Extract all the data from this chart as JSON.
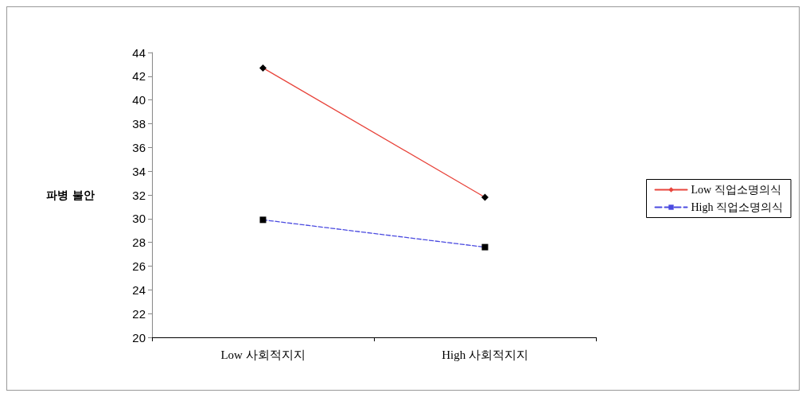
{
  "chart_data": {
    "type": "line",
    "ylabel": "파병 불안",
    "categories": [
      "Low 사회적지지",
      "High 사회적지지"
    ],
    "series": [
      {
        "name": "Low 직업소명의식",
        "color": "#e8453c",
        "values": [
          42.7,
          31.8
        ],
        "marker": "diamond",
        "line_style": "solid"
      },
      {
        "name": "High 직업소명의식",
        "color": "#4a4ae0",
        "values": [
          29.9,
          27.6
        ],
        "marker": "square",
        "line_style": "dashed"
      }
    ],
    "ylim": [
      20,
      44
    ],
    "yticks": [
      20,
      22,
      24,
      26,
      28,
      30,
      32,
      34,
      36,
      38,
      40,
      42,
      44
    ],
    "grid": false,
    "legend": "right"
  }
}
